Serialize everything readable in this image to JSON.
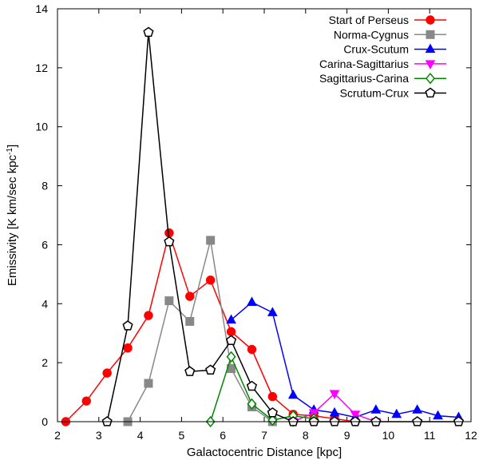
{
  "chart_data": {
    "type": "line",
    "title": "",
    "xlabel": "Galactocentric Distance [kpc]",
    "ylabel_main": "Emissivity [K km/sec kpc",
    "ylabel_sup": "-1",
    "ylabel_close": "]",
    "xlim": [
      2,
      12
    ],
    "ylim": [
      0,
      14
    ],
    "xticks": [
      "2",
      "3",
      "4",
      "5",
      "6",
      "7",
      "8",
      "9",
      "10",
      "11",
      "12"
    ],
    "yticks": [
      "0",
      "2",
      "4",
      "6",
      "8",
      "10",
      "12",
      "14"
    ],
    "legend_position": "top-right",
    "series": [
      {
        "name": "Start of Perseus",
        "color": "#ff0000",
        "marker": "circle-filled",
        "x": [
          2.2,
          2.7,
          3.2,
          3.7,
          4.2,
          4.7,
          5.2,
          5.7,
          6.2,
          6.7,
          7.2,
          7.7,
          8.2,
          8.7,
          9.2
        ],
        "y": [
          0.0,
          0.7,
          1.65,
          2.5,
          3.6,
          6.4,
          4.25,
          4.8,
          3.05,
          2.45,
          0.85,
          0.25,
          0.2,
          0.1,
          0.0
        ]
      },
      {
        "name": "Norma-Cygnus",
        "color": "#888888",
        "marker": "square-filled",
        "x": [
          3.7,
          4.2,
          4.7,
          5.2,
          5.7,
          6.2,
          6.7,
          7.2
        ],
        "y": [
          0.0,
          1.3,
          4.1,
          3.4,
          6.15,
          1.8,
          0.5,
          0.0
        ]
      },
      {
        "name": "Crux-Scutum",
        "color": "#0000ff",
        "marker": "triangle-up-filled",
        "x": [
          6.2,
          6.7,
          7.2,
          7.7,
          8.2,
          8.7,
          9.2,
          9.7,
          10.2,
          10.7,
          11.2,
          11.7
        ],
        "y": [
          3.45,
          4.05,
          3.7,
          0.9,
          0.4,
          0.3,
          0.15,
          0.4,
          0.25,
          0.4,
          0.2,
          0.15
        ]
      },
      {
        "name": "Carina-Sagittarius",
        "color": "#ff00ff",
        "marker": "triangle-down-filled",
        "x": [
          7.7,
          8.2,
          8.7,
          9.2,
          9.7
        ],
        "y": [
          0.0,
          0.3,
          0.95,
          0.25,
          0.0
        ]
      },
      {
        "name": "Sagittarius-Carina",
        "color": "#008800",
        "marker": "diamond-open",
        "x": [
          5.7,
          6.2,
          6.7,
          7.2,
          7.7,
          8.2
        ],
        "y": [
          0.0,
          2.2,
          0.6,
          0.05,
          0.2,
          0.1
        ]
      },
      {
        "name": "Scrutum-Crux",
        "color": "#000000",
        "marker": "pentagon-open",
        "x": [
          3.2,
          3.7,
          4.2,
          4.7,
          5.2,
          5.7,
          6.2,
          6.7,
          7.2,
          7.7,
          8.2,
          8.7,
          9.2,
          9.7,
          10.7,
          11.7
        ],
        "y": [
          0.0,
          3.25,
          13.2,
          6.1,
          1.7,
          1.75,
          2.75,
          1.2,
          0.3,
          0.0,
          0.0,
          0.0,
          0.0,
          0.0,
          0.0,
          0.0
        ]
      }
    ]
  }
}
